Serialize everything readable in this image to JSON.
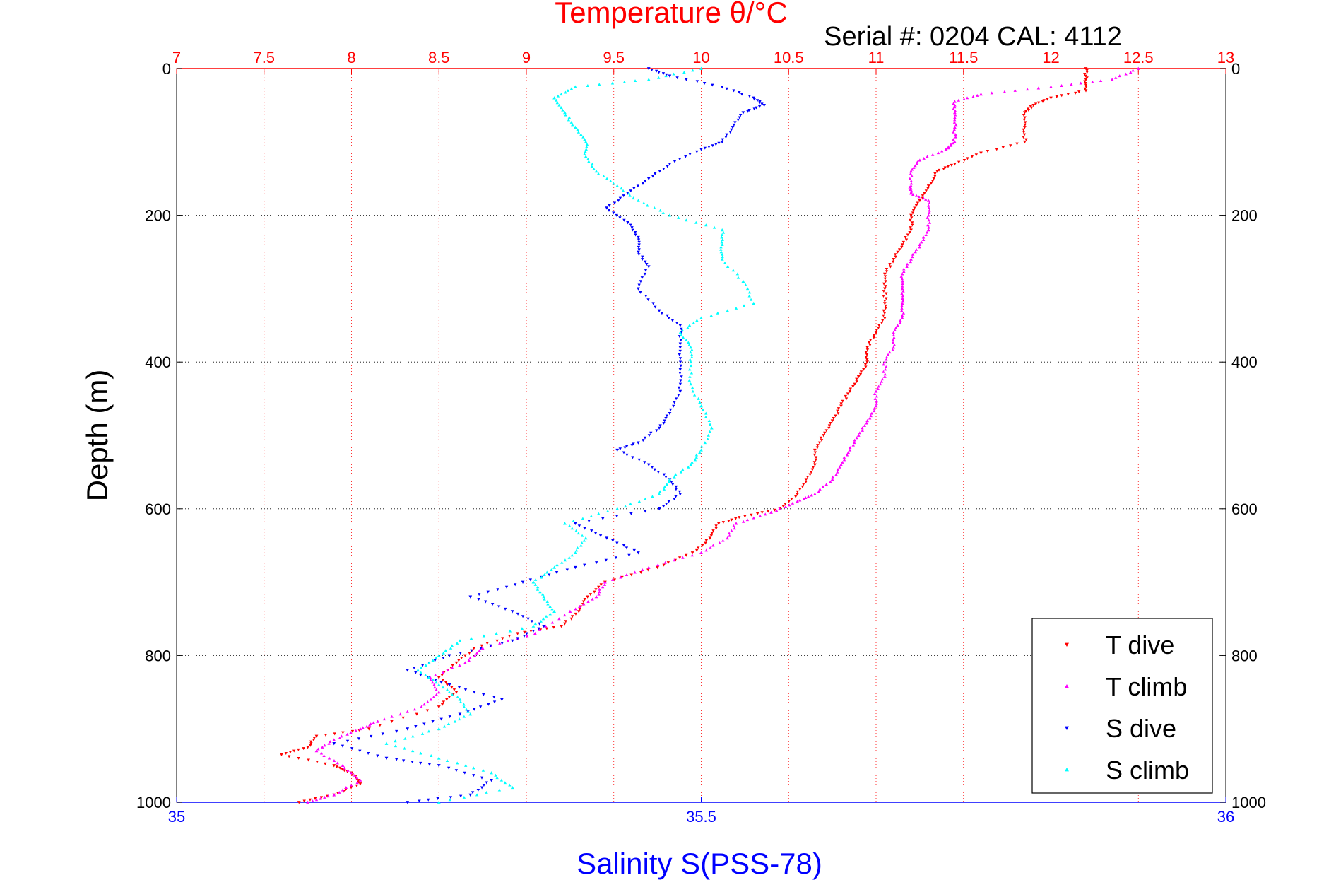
{
  "chart_data": {
    "type": "scatter",
    "title": "Temperature θ/°C",
    "annotation": "Serial #: 0204  CAL: 4112",
    "ylabel": "Depth (m)",
    "xlabel_bottom": "Salinity S(PSS-78)",
    "ylim": [
      0,
      1000
    ],
    "y_reversed": true,
    "y_ticks": [
      "0",
      "200",
      "400",
      "600",
      "800",
      "1000"
    ],
    "x_top": {
      "label": "Temperature θ/°C",
      "range": [
        7,
        13
      ],
      "ticks": [
        "7",
        "7.5",
        "8",
        "8.5",
        "9",
        "9.5",
        "10",
        "10.5",
        "11",
        "11.5",
        "12",
        "12.5",
        "13"
      ],
      "color": "#ff0000"
    },
    "x_bottom": {
      "label": "Salinity S(PSS-78)",
      "range": [
        35,
        36
      ],
      "ticks": [
        "35",
        "35.5",
        "36"
      ],
      "color": "#0000ff"
    },
    "grid": true,
    "legend_position": "bottom-right",
    "series": [
      {
        "name": "T dive",
        "axis": "temperature",
        "color": "#ff0000",
        "marker": "triangle-down",
        "points": [
          [
            12.2,
            0
          ],
          [
            12.2,
            15
          ],
          [
            12.2,
            30
          ],
          [
            12.0,
            40
          ],
          [
            11.9,
            50
          ],
          [
            11.85,
            60
          ],
          [
            11.85,
            80
          ],
          [
            11.85,
            100
          ],
          [
            11.6,
            115
          ],
          [
            11.45,
            130
          ],
          [
            11.35,
            140
          ],
          [
            11.3,
            160
          ],
          [
            11.25,
            180
          ],
          [
            11.2,
            200
          ],
          [
            11.2,
            220
          ],
          [
            11.15,
            240
          ],
          [
            11.1,
            260
          ],
          [
            11.05,
            280
          ],
          [
            11.05,
            300
          ],
          [
            11.05,
            320
          ],
          [
            11.05,
            340
          ],
          [
            11.0,
            360
          ],
          [
            10.95,
            380
          ],
          [
            10.95,
            400
          ],
          [
            10.9,
            420
          ],
          [
            10.85,
            440
          ],
          [
            10.8,
            460
          ],
          [
            10.75,
            480
          ],
          [
            10.7,
            500
          ],
          [
            10.65,
            520
          ],
          [
            10.65,
            540
          ],
          [
            10.6,
            560
          ],
          [
            10.55,
            580
          ],
          [
            10.45,
            600
          ],
          [
            10.25,
            610
          ],
          [
            10.1,
            620
          ],
          [
            10.05,
            640
          ],
          [
            9.95,
            660
          ],
          [
            9.75,
            680
          ],
          [
            9.45,
            700
          ],
          [
            9.35,
            720
          ],
          [
            9.3,
            740
          ],
          [
            9.2,
            760
          ],
          [
            8.95,
            770
          ],
          [
            8.7,
            790
          ],
          [
            8.6,
            810
          ],
          [
            8.5,
            830
          ],
          [
            8.6,
            850
          ],
          [
            8.5,
            870
          ],
          [
            8.1,
            900
          ],
          [
            7.8,
            910
          ],
          [
            7.75,
            925
          ],
          [
            7.6,
            935
          ],
          [
            7.9,
            950
          ],
          [
            8.0,
            960
          ],
          [
            8.05,
            975
          ],
          [
            7.9,
            990
          ],
          [
            7.7,
            1000
          ]
        ]
      },
      {
        "name": "T climb",
        "axis": "temperature",
        "color": "#ff00ff",
        "marker": "triangle-up",
        "points": [
          [
            12.5,
            0
          ],
          [
            12.35,
            15
          ],
          [
            12.0,
            25
          ],
          [
            11.6,
            35
          ],
          [
            11.45,
            45
          ],
          [
            11.45,
            60
          ],
          [
            11.45,
            80
          ],
          [
            11.45,
            100
          ],
          [
            11.4,
            110
          ],
          [
            11.25,
            125
          ],
          [
            11.2,
            140
          ],
          [
            11.2,
            160
          ],
          [
            11.2,
            170
          ],
          [
            11.3,
            180
          ],
          [
            11.3,
            200
          ],
          [
            11.3,
            220
          ],
          [
            11.25,
            240
          ],
          [
            11.2,
            260
          ],
          [
            11.15,
            280
          ],
          [
            11.15,
            300
          ],
          [
            11.15,
            320
          ],
          [
            11.15,
            340
          ],
          [
            11.1,
            360
          ],
          [
            11.1,
            380
          ],
          [
            11.05,
            400
          ],
          [
            11.05,
            420
          ],
          [
            11.0,
            440
          ],
          [
            11.0,
            460
          ],
          [
            10.95,
            480
          ],
          [
            10.9,
            500
          ],
          [
            10.85,
            520
          ],
          [
            10.8,
            540
          ],
          [
            10.75,
            560
          ],
          [
            10.65,
            580
          ],
          [
            10.55,
            590
          ],
          [
            10.4,
            605
          ],
          [
            10.2,
            620
          ],
          [
            10.15,
            640
          ],
          [
            10.0,
            660
          ],
          [
            9.7,
            680
          ],
          [
            9.45,
            700
          ],
          [
            9.4,
            720
          ],
          [
            9.25,
            740
          ],
          [
            9.05,
            770
          ],
          [
            8.75,
            790
          ],
          [
            8.65,
            810
          ],
          [
            8.45,
            830
          ],
          [
            8.5,
            850
          ],
          [
            8.4,
            870
          ],
          [
            8.15,
            890
          ],
          [
            8.05,
            900
          ],
          [
            7.9,
            915
          ],
          [
            7.8,
            930
          ],
          [
            7.95,
            950
          ],
          [
            8.05,
            970
          ],
          [
            7.9,
            990
          ],
          [
            7.75,
            1000
          ]
        ]
      },
      {
        "name": "S dive",
        "axis": "salinity",
        "color": "#0000ff",
        "marker": "triangle-down",
        "points": [
          [
            35.45,
            0
          ],
          [
            35.47,
            10
          ],
          [
            35.52,
            25
          ],
          [
            35.55,
            40
          ],
          [
            35.56,
            50
          ],
          [
            35.54,
            60
          ],
          [
            35.53,
            80
          ],
          [
            35.52,
            100
          ],
          [
            35.5,
            110
          ],
          [
            35.47,
            130
          ],
          [
            35.45,
            150
          ],
          [
            35.43,
            170
          ],
          [
            35.41,
            190
          ],
          [
            35.43,
            210
          ],
          [
            35.44,
            230
          ],
          [
            35.44,
            250
          ],
          [
            35.45,
            270
          ],
          [
            35.44,
            300
          ],
          [
            35.46,
            330
          ],
          [
            35.48,
            350
          ],
          [
            35.48,
            380
          ],
          [
            35.48,
            410
          ],
          [
            35.48,
            440
          ],
          [
            35.47,
            470
          ],
          [
            35.46,
            490
          ],
          [
            35.44,
            510
          ],
          [
            35.42,
            520
          ],
          [
            35.45,
            540
          ],
          [
            35.47,
            560
          ],
          [
            35.48,
            580
          ],
          [
            35.46,
            600
          ],
          [
            35.38,
            620
          ],
          [
            35.41,
            640
          ],
          [
            35.44,
            660
          ],
          [
            35.38,
            680
          ],
          [
            35.33,
            700
          ],
          [
            35.28,
            720
          ],
          [
            35.32,
            740
          ],
          [
            35.35,
            760
          ],
          [
            35.32,
            780
          ],
          [
            35.26,
            800
          ],
          [
            35.22,
            820
          ],
          [
            35.26,
            840
          ],
          [
            35.31,
            860
          ],
          [
            35.27,
            880
          ],
          [
            35.22,
            900
          ],
          [
            35.15,
            920
          ],
          [
            35.2,
            940
          ],
          [
            35.25,
            950
          ],
          [
            35.3,
            970
          ],
          [
            35.28,
            990
          ],
          [
            35.22,
            1000
          ]
        ]
      },
      {
        "name": "S climb",
        "axis": "salinity",
        "color": "#00ffff",
        "marker": "triangle-up",
        "points": [
          [
            35.5,
            0
          ],
          [
            35.45,
            15
          ],
          [
            35.38,
            25
          ],
          [
            35.36,
            40
          ],
          [
            35.37,
            60
          ],
          [
            35.38,
            80
          ],
          [
            35.39,
            100
          ],
          [
            35.39,
            120
          ],
          [
            35.4,
            140
          ],
          [
            35.42,
            160
          ],
          [
            35.44,
            180
          ],
          [
            35.47,
            200
          ],
          [
            35.52,
            220
          ],
          [
            35.52,
            240
          ],
          [
            35.52,
            260
          ],
          [
            35.54,
            290
          ],
          [
            35.55,
            320
          ],
          [
            35.5,
            340
          ],
          [
            35.48,
            360
          ],
          [
            35.49,
            380
          ],
          [
            35.49,
            400
          ],
          [
            35.49,
            430
          ],
          [
            35.5,
            460
          ],
          [
            35.51,
            490
          ],
          [
            35.5,
            520
          ],
          [
            35.49,
            540
          ],
          [
            35.47,
            560
          ],
          [
            35.46,
            580
          ],
          [
            35.42,
            600
          ],
          [
            35.37,
            620
          ],
          [
            35.39,
            640
          ],
          [
            35.38,
            660
          ],
          [
            35.36,
            680
          ],
          [
            35.34,
            700
          ],
          [
            35.35,
            720
          ],
          [
            35.36,
            740
          ],
          [
            35.34,
            760
          ],
          [
            35.27,
            780
          ],
          [
            35.25,
            800
          ],
          [
            35.23,
            820
          ],
          [
            35.25,
            840
          ],
          [
            35.27,
            860
          ],
          [
            35.28,
            880
          ],
          [
            35.25,
            900
          ],
          [
            35.2,
            920
          ],
          [
            35.25,
            940
          ],
          [
            35.3,
            960
          ],
          [
            35.32,
            980
          ],
          [
            35.25,
            1000
          ]
        ]
      }
    ]
  }
}
